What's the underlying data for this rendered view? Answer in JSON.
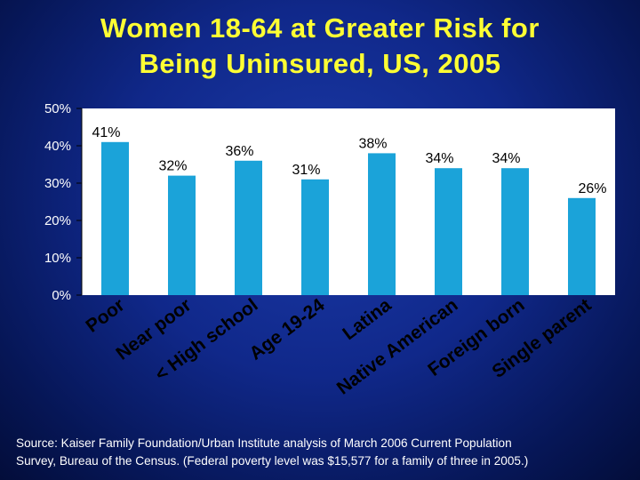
{
  "title": {
    "line1": "Women 18-64 at Greater Risk for",
    "line2": "Being Uninsured, US, 2005"
  },
  "colors": {
    "background": "#10288a",
    "title": "#ffff33",
    "bar": "#1ba3d9",
    "plot_area": "#ffffff",
    "text": "#ffffff",
    "category_labels": "#000000"
  },
  "chart_data": {
    "type": "bar",
    "categories": [
      "Poor",
      "Near poor",
      "< High school",
      "Age 19-24",
      "Latina",
      "Native American",
      "Foreign born",
      "Single parent"
    ],
    "values": [
      41,
      32,
      36,
      31,
      38,
      34,
      34,
      26
    ],
    "value_labels": [
      "41%",
      "32%",
      "36%",
      "31%",
      "38%",
      "34%",
      "34%",
      "26%"
    ],
    "ylim": [
      0,
      50
    ],
    "yticks": [
      0,
      10,
      20,
      30,
      40,
      50
    ],
    "ytick_labels": [
      "0%",
      "10%",
      "20%",
      "30%",
      "40%",
      "50%"
    ],
    "grid": false,
    "legend": "none"
  },
  "source": {
    "line1": "Source: Kaiser Family Foundation/Urban Institute analysis of March 2006 Current Population",
    "line2": "Survey, Bureau of the Census.  (Federal poverty level was $15,577 for a family of three in 2005.)"
  }
}
